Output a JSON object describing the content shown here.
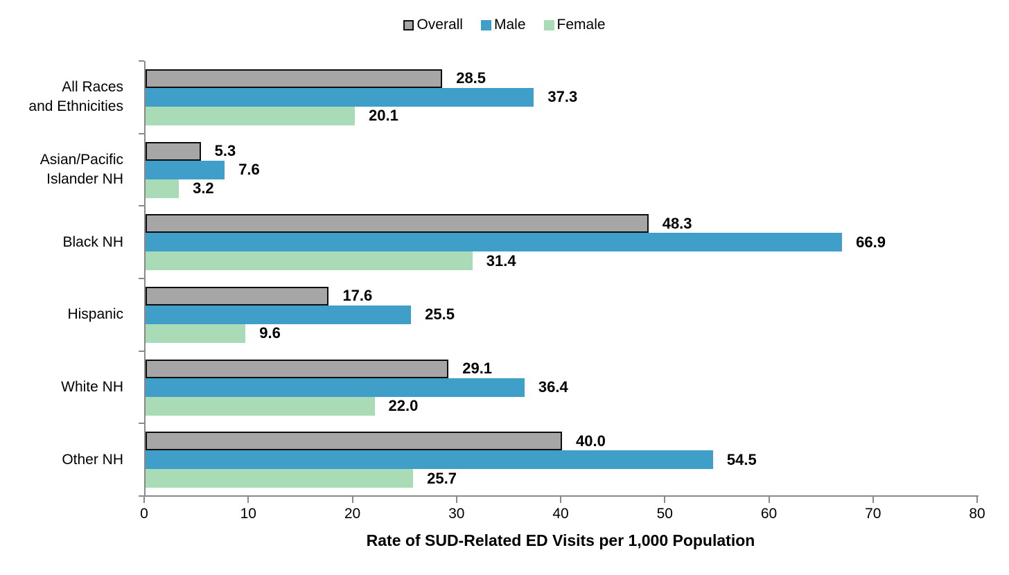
{
  "chart_data": {
    "type": "bar",
    "orientation": "horizontal",
    "title": "",
    "xlabel": "Rate of SUD-Related ED Visits per 1,000 Population",
    "ylabel": "",
    "xlim": [
      0,
      80
    ],
    "xticks": [
      0,
      10,
      20,
      30,
      40,
      50,
      60,
      70,
      80
    ],
    "grid": false,
    "legend_position": "top-center",
    "categories": [
      "All Races\nand Ethnicities",
      "Asian/Pacific\nIslander NH",
      "Black NH",
      "Hispanic",
      "White NH",
      "Other NH"
    ],
    "series": [
      {
        "name": "Overall",
        "color": "#a6a6a6",
        "border_color": "#0d0d0d",
        "values": [
          28.5,
          5.3,
          48.3,
          17.6,
          29.1,
          40.0
        ]
      },
      {
        "name": "Male",
        "color": "#3f9fc8",
        "border_color": null,
        "values": [
          37.3,
          7.6,
          66.9,
          25.5,
          36.4,
          54.5
        ]
      },
      {
        "name": "Female",
        "color": "#a9dcb6",
        "border_color": null,
        "values": [
          20.1,
          3.2,
          31.4,
          9.6,
          22.0,
          25.7
        ]
      }
    ],
    "value_label_decimals": 1,
    "axis_color": "#898989",
    "text_color": "#000000"
  }
}
